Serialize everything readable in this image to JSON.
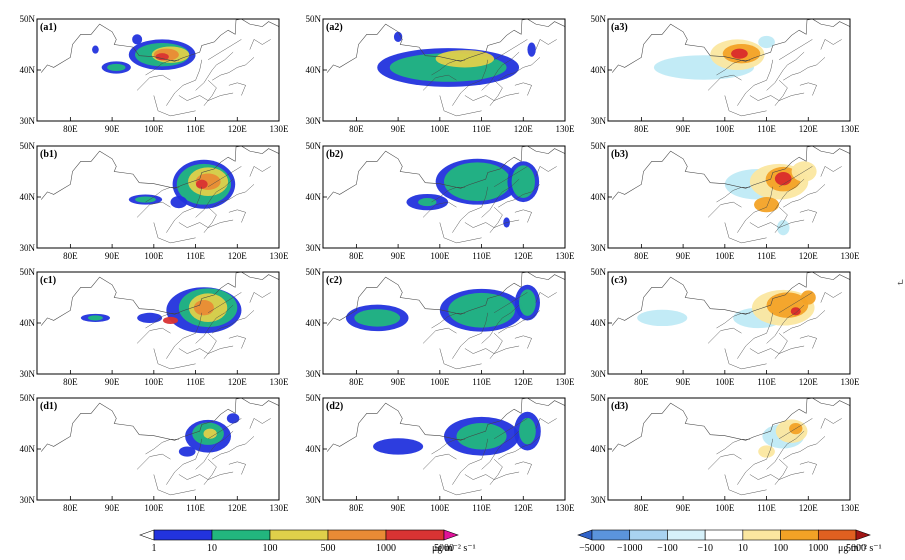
{
  "figure": {
    "x_ticks": [
      "80E",
      "90E",
      "100E",
      "110E",
      "120E",
      "130E"
    ],
    "y_ticks": [
      "30N",
      "40N",
      "50N"
    ],
    "colors": {
      "blue": "#2233dd",
      "green": "#22b67e",
      "yellow": "#dfd04a",
      "orange": "#e98b35",
      "red": "#d93333",
      "magenta": "#e0139a",
      "light_cyan": "#bfeaf6",
      "light_yellow": "#fbe7a0",
      "diff_orange": "#f3a226",
      "diff_red": "#d92b2b",
      "dark_red": "#a01616"
    },
    "panels": [
      {
        "label": "(a1)",
        "kind": "emission"
      },
      {
        "label": "(a2)",
        "kind": "emission"
      },
      {
        "label": "(a3)",
        "kind": "difference"
      },
      {
        "label": "(b1)",
        "kind": "emission"
      },
      {
        "label": "(b2)",
        "kind": "emission"
      },
      {
        "label": "(b3)",
        "kind": "difference"
      },
      {
        "label": "(c1)",
        "kind": "emission"
      },
      {
        "label": "(c2)",
        "kind": "emission"
      },
      {
        "label": "(c3)",
        "kind": "difference"
      },
      {
        "label": "(d1)",
        "kind": "emission"
      },
      {
        "label": "(d2)",
        "kind": "emission"
      },
      {
        "label": "(d3)",
        "kind": "difference"
      }
    ],
    "legend_left": {
      "labels": [
        "1",
        "10",
        "100",
        "500",
        "1000",
        "5000"
      ],
      "unit": "μg m⁻² s⁻¹",
      "colors": [
        "#ffffff",
        "#2233dd",
        "#22b67e",
        "#dfd04a",
        "#e98b35",
        "#d93333",
        "#e0139a"
      ]
    },
    "legend_right": {
      "labels": [
        "−5000",
        "−1000",
        "−100",
        "−10",
        "10",
        "100",
        "1000",
        "5000"
      ],
      "unit": "μg m⁻² s⁻¹",
      "colors": [
        "#2f62c8",
        "#5b94dc",
        "#a9d3f0",
        "#d6f1fa",
        "#ffffff",
        "#fbe7a0",
        "#f3a226",
        "#e06020",
        "#a01616"
      ]
    },
    "return_mark": "↵"
  }
}
